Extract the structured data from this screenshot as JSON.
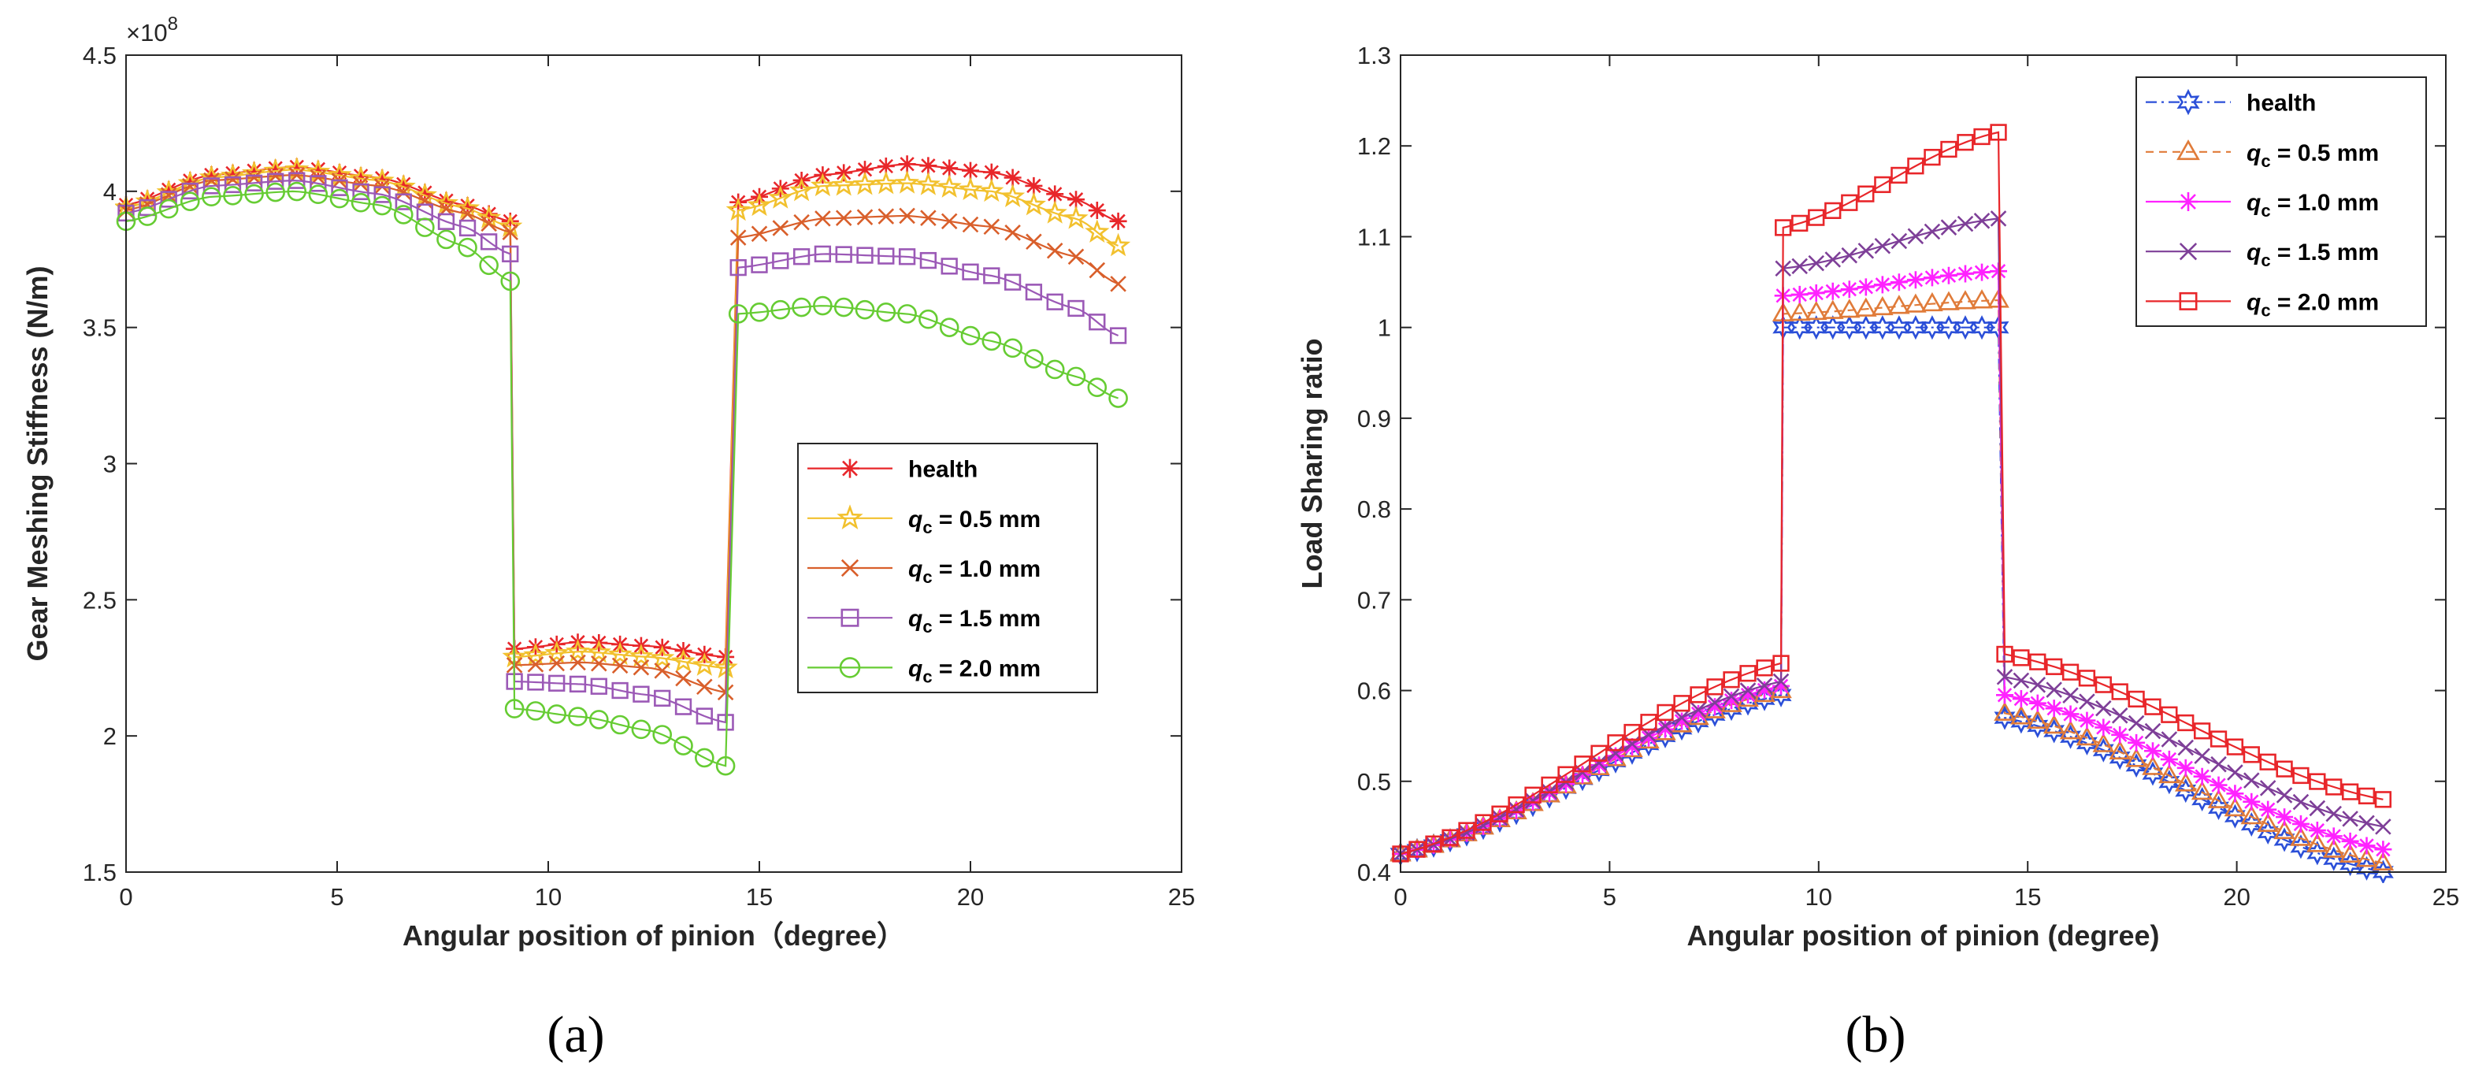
{
  "figure": {
    "background": "#ffffff",
    "panel_a_caption": "(a)",
    "panel_b_caption": "(b)"
  },
  "chart_data": [
    {
      "id": "a",
      "type": "line",
      "xlabel": "Angular position of pinion（degree）",
      "ylabel": "Gear Meshing Stiffness (N/m)",
      "xlim": [
        0,
        25
      ],
      "ylim": [
        1.5,
        4.5
      ],
      "xticks": [
        "0",
        "5",
        "10",
        "15",
        "20",
        "25"
      ],
      "yticks": [
        "1.5",
        "2",
        "2.5",
        "3",
        "3.5",
        "4",
        "4.5"
      ],
      "y_exponent_label": "×10",
      "y_exponent_power": "8",
      "legend_position": "center-right",
      "legend": [
        {
          "prefix": "health",
          "sub": "",
          "suffix": ""
        },
        {
          "prefix": "q",
          "sub": "c",
          "suffix": " = 0.5 mm"
        },
        {
          "prefix": "q",
          "sub": "c",
          "suffix": " = 1.0 mm"
        },
        {
          "prefix": "q",
          "sub": "c",
          "suffix": " = 1.5 mm"
        },
        {
          "prefix": "q",
          "sub": "c",
          "suffix": " = 2.0 mm"
        }
      ],
      "x_breaks": [
        9.1,
        14.4
      ],
      "marker_spacing": 0.5,
      "series": [
        {
          "name": "health",
          "color": "#e8262a",
          "marker": "asterisk",
          "segments": [
            {
              "x": [
                0,
                2,
                4,
                6,
                8,
                9.1
              ],
              "y": [
                3.95,
                4.06,
                4.09,
                4.05,
                3.95,
                3.89
              ]
            },
            {
              "x": [
                9.2,
                10.8,
                12.4,
                14.2
              ],
              "y": [
                2.32,
                2.345,
                2.33,
                2.29
              ]
            },
            {
              "x": [
                14.5,
                16.5,
                18.5,
                20.5,
                22.5,
                23.5
              ],
              "y": [
                3.96,
                4.06,
                4.1,
                4.07,
                3.97,
                3.89
              ]
            }
          ]
        },
        {
          "name": "q_c = 0.5 mm",
          "color": "#f2c12e",
          "marker": "star",
          "segments": [
            {
              "x": [
                0,
                2,
                4,
                6,
                8,
                9.1
              ],
              "y": [
                3.94,
                4.05,
                4.08,
                4.04,
                3.94,
                3.87
              ]
            },
            {
              "x": [
                9.2,
                10.8,
                12.4,
                14.2
              ],
              "y": [
                2.29,
                2.31,
                2.29,
                2.25
              ]
            },
            {
              "x": [
                14.5,
                16.5,
                18.5,
                20.5,
                22.5,
                23.5
              ],
              "y": [
                3.93,
                4.02,
                4.03,
                4.0,
                3.9,
                3.8
              ]
            }
          ]
        },
        {
          "name": "q_c = 1.0 mm",
          "color": "#d95f2b",
          "marker": "cross",
          "segments": [
            {
              "x": [
                0,
                2,
                4,
                6,
                8,
                9.1
              ],
              "y": [
                3.93,
                4.04,
                4.06,
                4.02,
                3.92,
                3.85
              ]
            },
            {
              "x": [
                9.2,
                10.8,
                12.4,
                14.2
              ],
              "y": [
                2.26,
                2.27,
                2.25,
                2.16
              ]
            },
            {
              "x": [
                14.5,
                16.5,
                18.5,
                20.5,
                22.5,
                23.5
              ],
              "y": [
                3.83,
                3.9,
                3.91,
                3.87,
                3.76,
                3.66
              ]
            }
          ]
        },
        {
          "name": "q_c = 1.5 mm",
          "color": "#9b59b6",
          "marker": "square",
          "segments": [
            {
              "x": [
                0,
                2,
                4,
                6,
                8,
                9.1
              ],
              "y": [
                3.92,
                4.02,
                4.04,
                3.99,
                3.87,
                3.77
              ]
            },
            {
              "x": [
                9.2,
                10.8,
                12.4,
                14.2
              ],
              "y": [
                2.2,
                2.19,
                2.15,
                2.05
              ]
            },
            {
              "x": [
                14.5,
                16.5,
                18.5,
                20.5,
                22.5,
                23.5
              ],
              "y": [
                3.72,
                3.77,
                3.76,
                3.69,
                3.57,
                3.47
              ]
            }
          ]
        },
        {
          "name": "q_c = 2.0 mm",
          "color": "#66cc33",
          "marker": "circle",
          "segments": [
            {
              "x": [
                0,
                2,
                4,
                6,
                8,
                9.1
              ],
              "y": [
                3.89,
                3.98,
                4.0,
                3.95,
                3.8,
                3.67
              ]
            },
            {
              "x": [
                9.2,
                10.8,
                12.4,
                14.2
              ],
              "y": [
                2.1,
                2.07,
                2.02,
                1.89
              ]
            },
            {
              "x": [
                14.5,
                16.5,
                18.5,
                20.5,
                22.5,
                23.5
              ],
              "y": [
                3.55,
                3.58,
                3.55,
                3.45,
                3.32,
                3.24
              ]
            }
          ]
        }
      ]
    },
    {
      "id": "b",
      "type": "line",
      "xlabel": "Angular position of pinion (degree)",
      "ylabel": "Load Sharing ratio",
      "xlim": [
        0,
        25
      ],
      "ylim": [
        0.4,
        1.3
      ],
      "xticks": [
        "0",
        "5",
        "10",
        "15",
        "20",
        "25"
      ],
      "yticks": [
        "0.4",
        "0.5",
        "0.6",
        "0.7",
        "0.8",
        "0.9",
        "1",
        "1.1",
        "1.2",
        "1.3"
      ],
      "legend_position": "top-right",
      "legend": [
        {
          "prefix": "health",
          "sub": "",
          "suffix": ""
        },
        {
          "prefix": "q",
          "sub": "c",
          "suffix": " = 0.5 mm"
        },
        {
          "prefix": "q",
          "sub": "c",
          "suffix": " = 1.0 mm"
        },
        {
          "prefix": "q",
          "sub": "c",
          "suffix": " = 1.5 mm"
        },
        {
          "prefix": "q",
          "sub": "c",
          "suffix": " = 2.0 mm"
        }
      ],
      "x_breaks": [
        9.1,
        14.4
      ],
      "marker_spacing": 0.4,
      "series": [
        {
          "name": "health",
          "color": "#2b4fd8",
          "marker": "hexagram",
          "dash": "dashdot",
          "segments": [
            {
              "x": [
                0,
                9.1
              ],
              "y": [
                0.42,
                0.595
              ]
            },
            {
              "x": [
                9.15,
                14.3
              ],
              "y": [
                1.0,
                1.0
              ]
            },
            {
              "x": [
                14.45,
                23.5
              ],
              "y": [
                0.57,
                0.4
              ]
            }
          ]
        },
        {
          "name": "q_c = 0.5 mm",
          "color": "#e07b39",
          "marker": "triangle",
          "dash": "dashed",
          "segments": [
            {
              "x": [
                0,
                9.1
              ],
              "y": [
                0.42,
                0.6
              ]
            },
            {
              "x": [
                9.15,
                14.3
              ],
              "y": [
                1.015,
                1.03
              ]
            },
            {
              "x": [
                14.45,
                23.5
              ],
              "y": [
                0.575,
                0.41
              ]
            }
          ]
        },
        {
          "name": "q_c = 1.0 mm",
          "color": "#ff22ff",
          "marker": "asterisk",
          "dash": "solid",
          "segments": [
            {
              "x": [
                0,
                9.1
              ],
              "y": [
                0.42,
                0.605
              ]
            },
            {
              "x": [
                9.15,
                14.3
              ],
              "y": [
                1.035,
                1.062
              ]
            },
            {
              "x": [
                14.45,
                23.5
              ],
              "y": [
                0.595,
                0.425
              ]
            }
          ]
        },
        {
          "name": "q_c = 1.5 mm",
          "color": "#7e3f98",
          "marker": "cross",
          "dash": "solid",
          "segments": [
            {
              "x": [
                0,
                9.1
              ],
              "y": [
                0.42,
                0.61
              ]
            },
            {
              "x": [
                9.15,
                14.3
              ],
              "y": [
                1.065,
                1.12
              ]
            },
            {
              "x": [
                14.45,
                23.5
              ],
              "y": [
                0.615,
                0.45
              ]
            }
          ]
        },
        {
          "name": "q_c = 2.0 mm",
          "color": "#e8262a",
          "marker": "square",
          "dash": "solid",
          "segments": [
            {
              "x": [
                0,
                9.1
              ],
              "y": [
                0.42,
                0.63
              ]
            },
            {
              "x": [
                9.15,
                14.3
              ],
              "y": [
                1.11,
                1.215
              ]
            },
            {
              "x": [
                14.45,
                23.5
              ],
              "y": [
                0.64,
                0.48
              ]
            }
          ]
        }
      ]
    }
  ]
}
